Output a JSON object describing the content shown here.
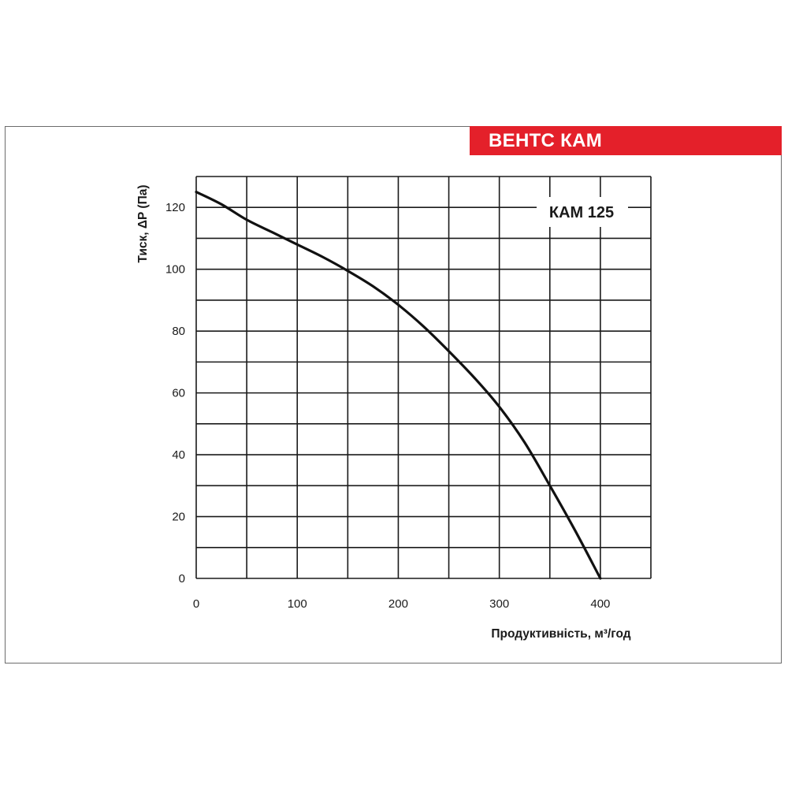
{
  "brand": {
    "title": "ВЕНТС КАМ",
    "color": "#e4202a"
  },
  "chart_data": {
    "type": "line",
    "model_label": "КАМ 125",
    "xlabel": "Продуктивність, м³/год",
    "ylabel": "Тиск, ΔP (Па)",
    "xlim": [
      0,
      450
    ],
    "ylim": [
      0,
      130
    ],
    "x_ticks": [
      0,
      100,
      200,
      300,
      400
    ],
    "y_ticks": [
      0,
      20,
      40,
      60,
      80,
      100,
      120
    ],
    "x_grid": [
      0,
      50,
      100,
      150,
      200,
      250,
      300,
      350,
      400,
      450
    ],
    "y_grid": [
      0,
      10,
      20,
      30,
      40,
      50,
      60,
      70,
      80,
      90,
      100,
      110,
      120,
      130
    ],
    "grid": true,
    "line_color": "#111111",
    "series": [
      {
        "x": [
          0,
          25,
          50,
          75,
          100,
          125,
          150,
          175,
          200,
          225,
          250,
          275,
          300,
          325,
          350,
          375,
          400
        ],
        "y": [
          125,
          121,
          116,
          112,
          108,
          104,
          99.5,
          94.5,
          88.5,
          81.5,
          73.5,
          65,
          55.5,
          44,
          30,
          15.5,
          0
        ]
      }
    ]
  }
}
